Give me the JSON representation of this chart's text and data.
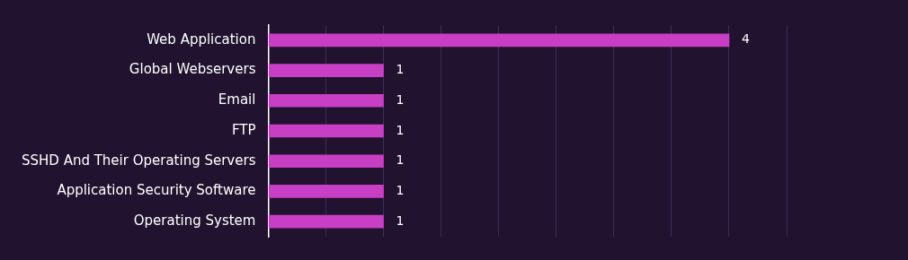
{
  "chart_data": {
    "type": "bar",
    "orientation": "horizontal",
    "categories": [
      "Web Application",
      "Global Webservers",
      "Email",
      "FTP",
      "SSHD And Their Operating Servers",
      "Application Security Software",
      "Operating System"
    ],
    "values": [
      4,
      1,
      1,
      1,
      1,
      1,
      1
    ],
    "color": "#c83ec4",
    "xlim": [
      0,
      4.5
    ],
    "xticks": [
      {
        "value": 0,
        "label": null
      },
      {
        "value": 0.5,
        "label": null
      },
      {
        "value": 1,
        "label": null
      },
      {
        "value": 1.5,
        "label": null
      },
      {
        "value": 2,
        "label": null
      },
      {
        "value": 2.5,
        "label": null
      },
      {
        "value": 3,
        "label": null
      },
      {
        "value": 3.5,
        "label": null
      },
      {
        "value": 4,
        "label": null
      },
      {
        "value": 4.5,
        "label": null
      }
    ],
    "grid": "x",
    "data_labels": true,
    "tick_labels": "y",
    "legend": false
  }
}
